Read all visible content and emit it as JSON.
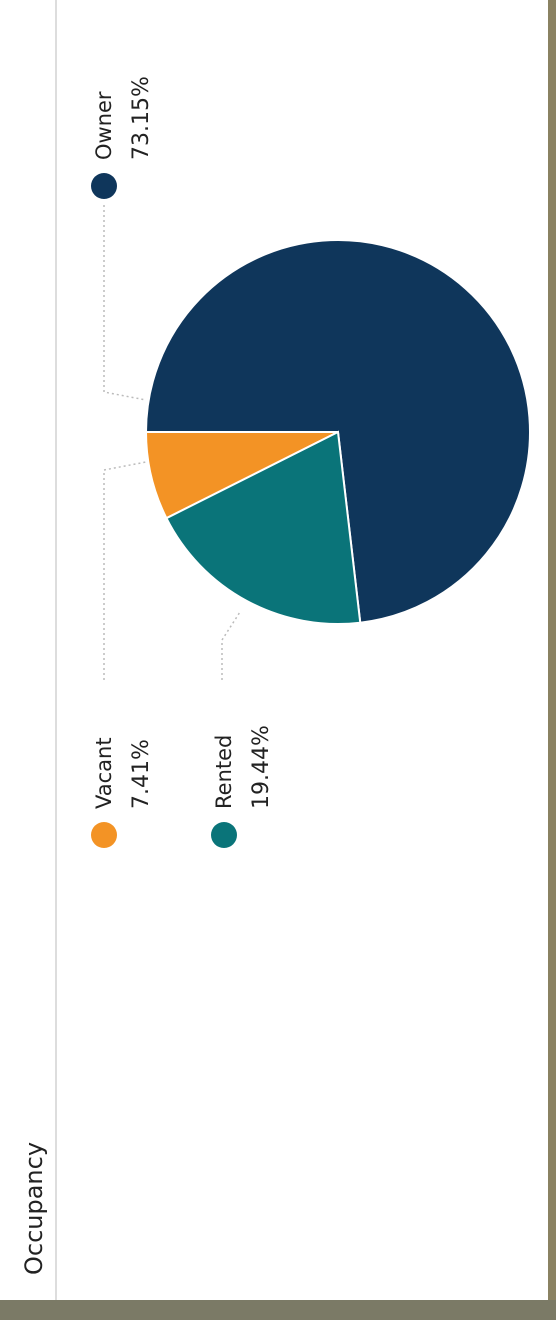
{
  "chart_data": {
    "type": "pie",
    "title": "Occupancy",
    "categories": [
      "Owner",
      "Vacant",
      "Rented"
    ],
    "values": [
      73.15,
      7.41,
      19.44
    ],
    "value_labels": [
      "73.15%",
      "7.41%",
      "19.44%"
    ],
    "colors": [
      "#0f365b",
      "#f39325",
      "#0a7479"
    ]
  }
}
